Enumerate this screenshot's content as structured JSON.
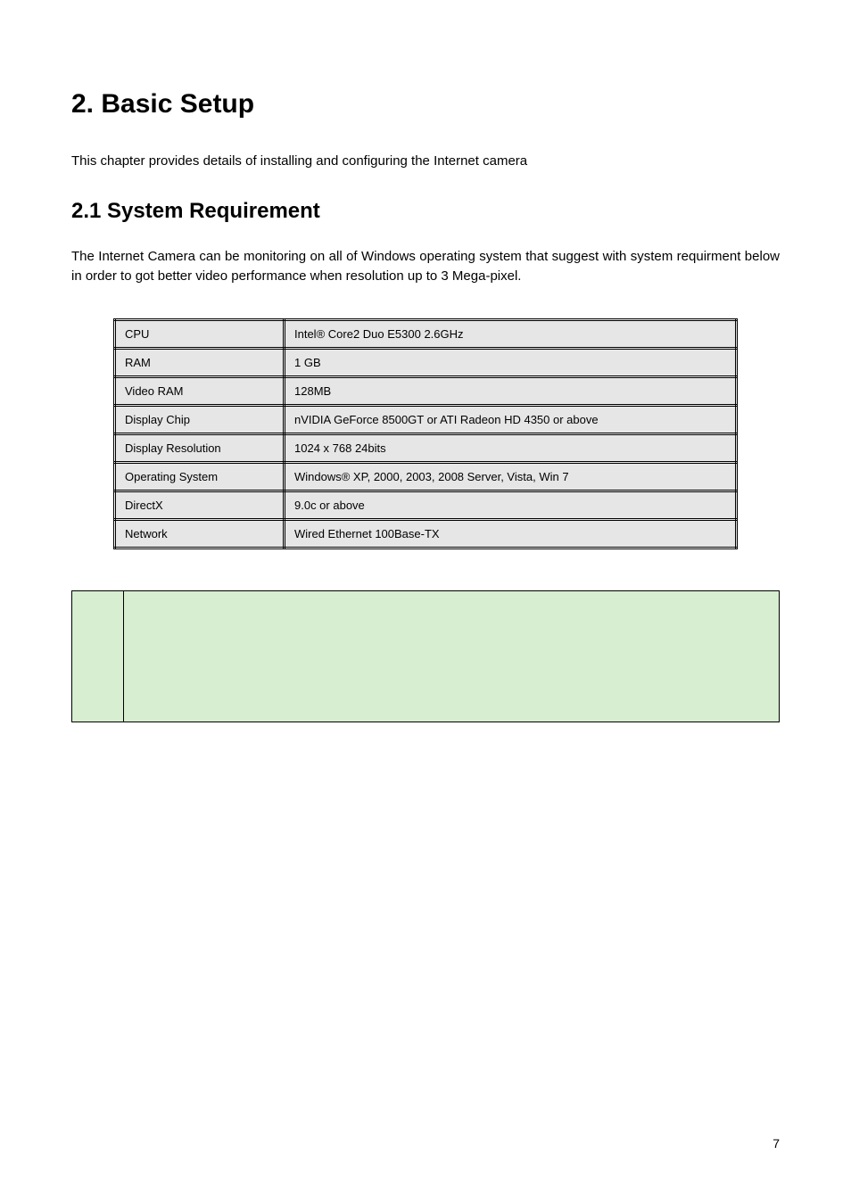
{
  "heading1": "2. Basic Setup",
  "intro": "This chapter provides details of installing and configuring the Internet camera",
  "heading2": "2.1 System Requirement",
  "paragraph": "The Internet Camera can be monitoring on all of Windows operating system that suggest with system requirment below in order to got better video performance when resolution up to 3 Mega-pixel.",
  "specs": {
    "rows": [
      {
        "k": "CPU",
        "v": "Intel® Core2 Duo E5300 2.6GHz"
      },
      {
        "k": "RAM",
        "v": "1 GB"
      },
      {
        "k": "Video RAM",
        "v": "128MB"
      },
      {
        "k": "Display Chip",
        "v": "nVIDIA GeForce 8500GT or ATI Radeon HD 4350 or above"
      },
      {
        "k": "Display Resolution",
        "v": "1024 x 768 24bits"
      },
      {
        "k": "Operating System",
        "v": "Windows® XP, 2000, 2003, 2008 Server, Vista, Win 7"
      },
      {
        "k": "DirectX",
        "v": "9.0c or above"
      },
      {
        "k": "Network",
        "v": "Wired Ethernet 100Base-TX"
      }
    ]
  },
  "colors": {
    "page_bg": "#ffffff",
    "text": "#000000",
    "table_cell_bg": "#e6e6e6",
    "table_border": "#000000",
    "notebox_bg": "#d7eed0",
    "notebox_border": "#000000"
  },
  "page_number": "7"
}
